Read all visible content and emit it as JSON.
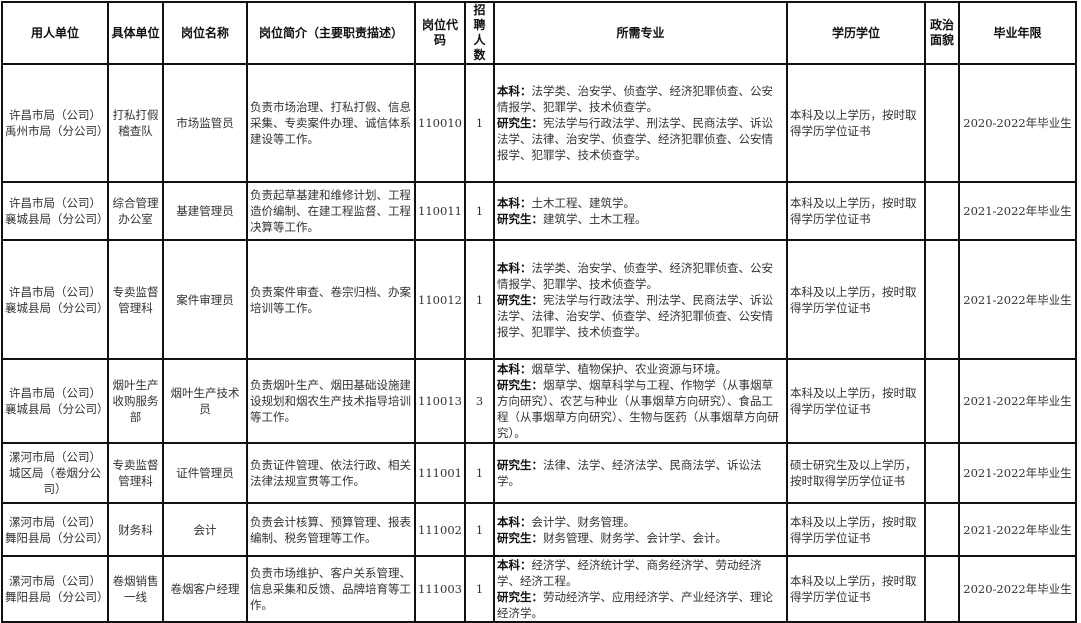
{
  "headers": [
    "用人单位",
    "具体单位",
    "岗位名称",
    "岗位简介（主要职责描述）",
    "岗位代码",
    "招聘人数",
    "所需专业",
    "学历学位",
    "政治面貌",
    "毕业年限"
  ],
  "labels": {
    "undergrad": "本科：",
    "grad": "研究生："
  },
  "rows": [
    {
      "unit": "许昌市局（公司）禹州市局（分公司）",
      "dept": "打私打假稽查队",
      "post": "市场监管员",
      "desc": "负责市场治理、打私打假、信息采集、专卖案件办理、诚信体系建设等工作。",
      "code": "110010",
      "count": "1",
      "undergrad": "法学类、治安学、侦查学、经济犯罪侦查、公安情报学、犯罪学、技术侦查学。",
      "grad": "宪法学与行政法学、刑法学、民商法学、诉讼法学、法律、治安学、侦查学、经济犯罪侦查、公安情报学、犯罪学、技术侦查学。",
      "edu": "本科及以上学历，按时取得学历学位证书",
      "political": "",
      "years": "2020-2022年毕业生"
    },
    {
      "unit": "许昌市局（公司）襄城县局（分公司）",
      "dept": "综合管理办公室",
      "post": "基建管理员",
      "desc": "负责起草基建和维修计划、工程造价编制、在建工程监督、工程决算等工作。",
      "code": "110011",
      "count": "1",
      "undergrad": "土木工程、建筑学。",
      "grad": "建筑学、土木工程。",
      "edu": "本科及以上学历，按时取得学历学位证书",
      "political": "",
      "years": "2021-2022年毕业生"
    },
    {
      "unit": "许昌市局（公司）襄城县局（分公司）",
      "dept": "专卖监督管理科",
      "post": "案件审理员",
      "desc": "负责案件审查、卷宗归档、办案培训等工作。",
      "code": "110012",
      "count": "1",
      "undergrad": "法学类、治安学、侦查学、经济犯罪侦查、公安情报学、犯罪学、技术侦查学。",
      "grad": "宪法学与行政法学、刑法学、民商法学、诉讼法学、法律、治安学、侦查学、经济犯罪侦查、公安情报学、犯罪学、技术侦查学。",
      "edu": "本科及以上学历，按时取得学历学位证书",
      "political": "",
      "years": "2021-2022年毕业生"
    },
    {
      "unit": "许昌市局（公司）襄城县局（分公司）",
      "dept": "烟叶生产收购服务部",
      "post": "烟叶生产技术员",
      "desc": "负责烟叶生产、烟田基础设施建设规划和烟农生产技术指导培训等工作。",
      "code": "110013",
      "count": "3",
      "undergrad": "烟草学、植物保护、农业资源与环境。",
      "grad": "烟草学、烟草科学与工程、作物学（从事烟草方向研究）、农艺与种业（从事烟草方向研究）、食品工程（从事烟草方向研究）、生物与医药（从事烟草方向研究）。",
      "edu": "本科及以上学历，按时取得学历学位证书",
      "political": "",
      "years": "2021-2022年毕业生"
    },
    {
      "unit": "漯河市局（公司）城区局（卷烟分公司）",
      "dept": "专卖监督管理科",
      "post": "证件管理员",
      "desc": "负责证件管理、依法行政、相关法律法规宣贯等工作。",
      "code": "111001",
      "count": "1",
      "undergrad": null,
      "grad": "法律、法学、经济法学、民商法学、诉讼法学。",
      "edu": "硕士研究生及以上学历，按时取得学历学位证书",
      "political": "",
      "years": "2021-2022年毕业生"
    },
    {
      "unit": "漯河市局（公司）舞阳县局（分公司）",
      "dept": "财务科",
      "post": "会计",
      "desc": "负责会计核算、预算管理、报表编制、税务管理等工作。",
      "code": "111002",
      "count": "1",
      "undergrad": "会计学、财务管理。",
      "grad": "财务管理、财务学、会计学、会计。",
      "edu": "本科及以上学历，按时取得学历学位证书",
      "political": "",
      "years": "2021-2022年毕业生"
    },
    {
      "unit": "漯河市局（公司）舞阳县局（分公司）",
      "dept": "卷烟销售一线",
      "post": "卷烟客户经理",
      "desc": "负责市场维护、客户关系管理、信息采集和反馈、品牌培育等工作。",
      "code": "111003",
      "count": "1",
      "undergrad": "经济学、经济统计学、商务经济学、劳动经济学、经济工程。",
      "grad": "劳动经济学、应用经济学、产业经济学、理论经济学。",
      "edu": "本科及以上学历，按时取得学历学位证书",
      "political": "",
      "years": "2020-2022年毕业生"
    }
  ]
}
